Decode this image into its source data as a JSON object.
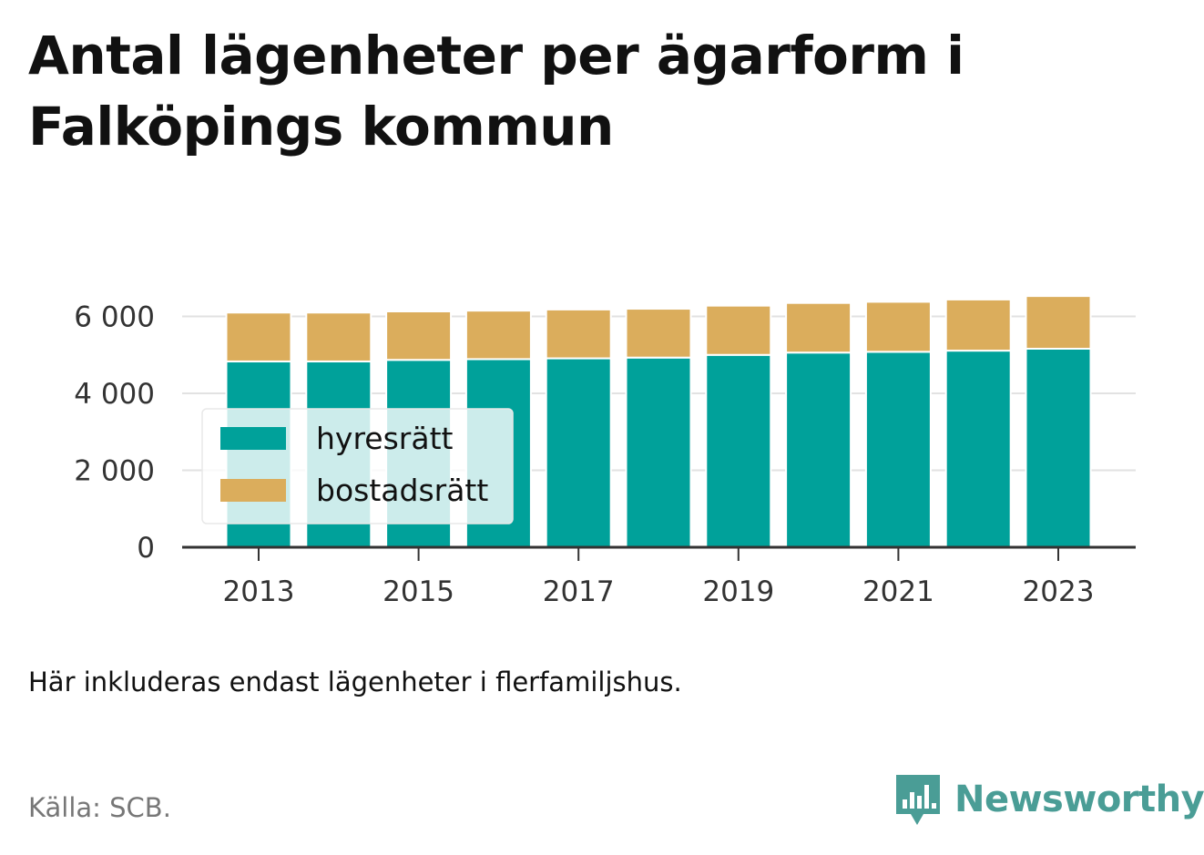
{
  "title": "Antal lägenheter per ägarform i Falköpings kommun",
  "note": "Här inkluderas endast lägenheter i flerfamiljshus.",
  "source": "Källa: SCB.",
  "brand": {
    "name": "Newsworthy",
    "icon": "bar-chart-speech-bubble-icon",
    "color": "#4a9d96"
  },
  "chart_data": {
    "type": "bar",
    "stacked": true,
    "categories": [
      "2013",
      "2014",
      "2015",
      "2016",
      "2017",
      "2018",
      "2019",
      "2020",
      "2021",
      "2022",
      "2023"
    ],
    "series": [
      {
        "name": "hyresrätt",
        "color": "#00a19a",
        "values": [
          4830,
          4830,
          4870,
          4890,
          4910,
          4930,
          5000,
          5060,
          5080,
          5110,
          5160
        ]
      },
      {
        "name": "bostadsrätt",
        "color": "#dbad5c",
        "values": [
          1270,
          1270,
          1260,
          1260,
          1270,
          1270,
          1280,
          1290,
          1300,
          1330,
          1370
        ]
      }
    ],
    "ylim": [
      0,
      6600
    ],
    "yticks": [
      0,
      2000,
      4000,
      6000
    ],
    "ytick_labels": [
      "0",
      "2 000",
      "4 000",
      "6 000"
    ],
    "xtick_labels": [
      "2013",
      "2015",
      "2017",
      "2019",
      "2021",
      "2023"
    ],
    "grid": true,
    "legend_position": "bottom-left",
    "xlabel": "",
    "ylabel": ""
  }
}
